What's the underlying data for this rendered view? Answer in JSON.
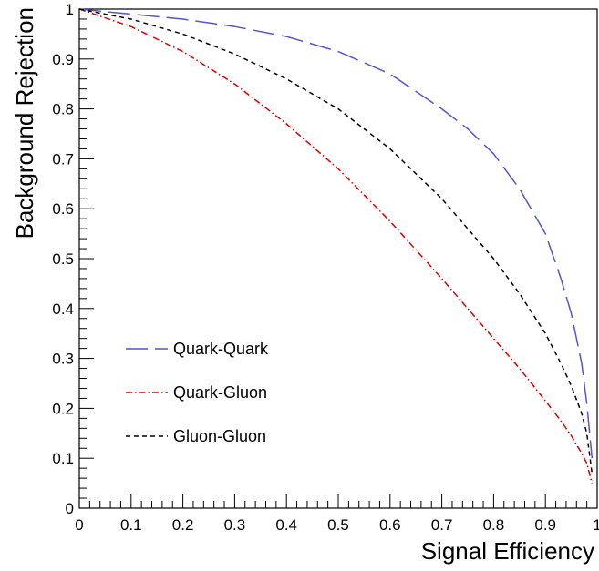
{
  "chart_data": {
    "type": "line",
    "title": "",
    "xlabel": "Signal Efficiency",
    "ylabel": "Background Rejection",
    "xlim": [
      0,
      1
    ],
    "ylim": [
      0,
      1
    ],
    "x_ticks": [
      "0",
      "0.1",
      "0.2",
      "0.3",
      "0.4",
      "0.5",
      "0.6",
      "0.7",
      "0.8",
      "0.9",
      "1"
    ],
    "y_ticks": [
      "0",
      "0.1",
      "0.2",
      "0.3",
      "0.4",
      "0.5",
      "0.6",
      "0.7",
      "0.8",
      "0.9",
      "1"
    ],
    "grid": false,
    "legend_position": "lower-left",
    "series": [
      {
        "name": "Quark-Quark",
        "color": "#5555cc",
        "line_style": "long-dashed",
        "x": [
          0,
          0.1,
          0.2,
          0.3,
          0.4,
          0.5,
          0.6,
          0.7,
          0.75,
          0.8,
          0.85,
          0.9,
          0.93,
          0.95,
          0.97,
          0.98,
          0.99
        ],
        "y": [
          1.0,
          0.99,
          0.98,
          0.965,
          0.945,
          0.915,
          0.87,
          0.8,
          0.76,
          0.71,
          0.64,
          0.55,
          0.46,
          0.39,
          0.29,
          0.21,
          0.1
        ]
      },
      {
        "name": "Quark-Gluon",
        "color": "#dd0000",
        "line_style": "dash-dot",
        "x": [
          0,
          0.1,
          0.2,
          0.3,
          0.4,
          0.5,
          0.6,
          0.7,
          0.8,
          0.85,
          0.9,
          0.93,
          0.95,
          0.97,
          0.98,
          0.99
        ],
        "y": [
          1.0,
          0.965,
          0.915,
          0.85,
          0.77,
          0.68,
          0.575,
          0.46,
          0.34,
          0.28,
          0.215,
          0.175,
          0.145,
          0.11,
          0.09,
          0.05
        ]
      },
      {
        "name": "Gluon-Gluon",
        "color": "#000000",
        "line_style": "short-dashed",
        "x": [
          0,
          0.1,
          0.2,
          0.3,
          0.4,
          0.5,
          0.6,
          0.7,
          0.8,
          0.85,
          0.9,
          0.93,
          0.95,
          0.97,
          0.98,
          0.99
        ],
        "y": [
          1.0,
          0.98,
          0.95,
          0.91,
          0.86,
          0.8,
          0.72,
          0.62,
          0.5,
          0.43,
          0.35,
          0.29,
          0.245,
          0.19,
          0.15,
          0.07
        ]
      }
    ]
  }
}
